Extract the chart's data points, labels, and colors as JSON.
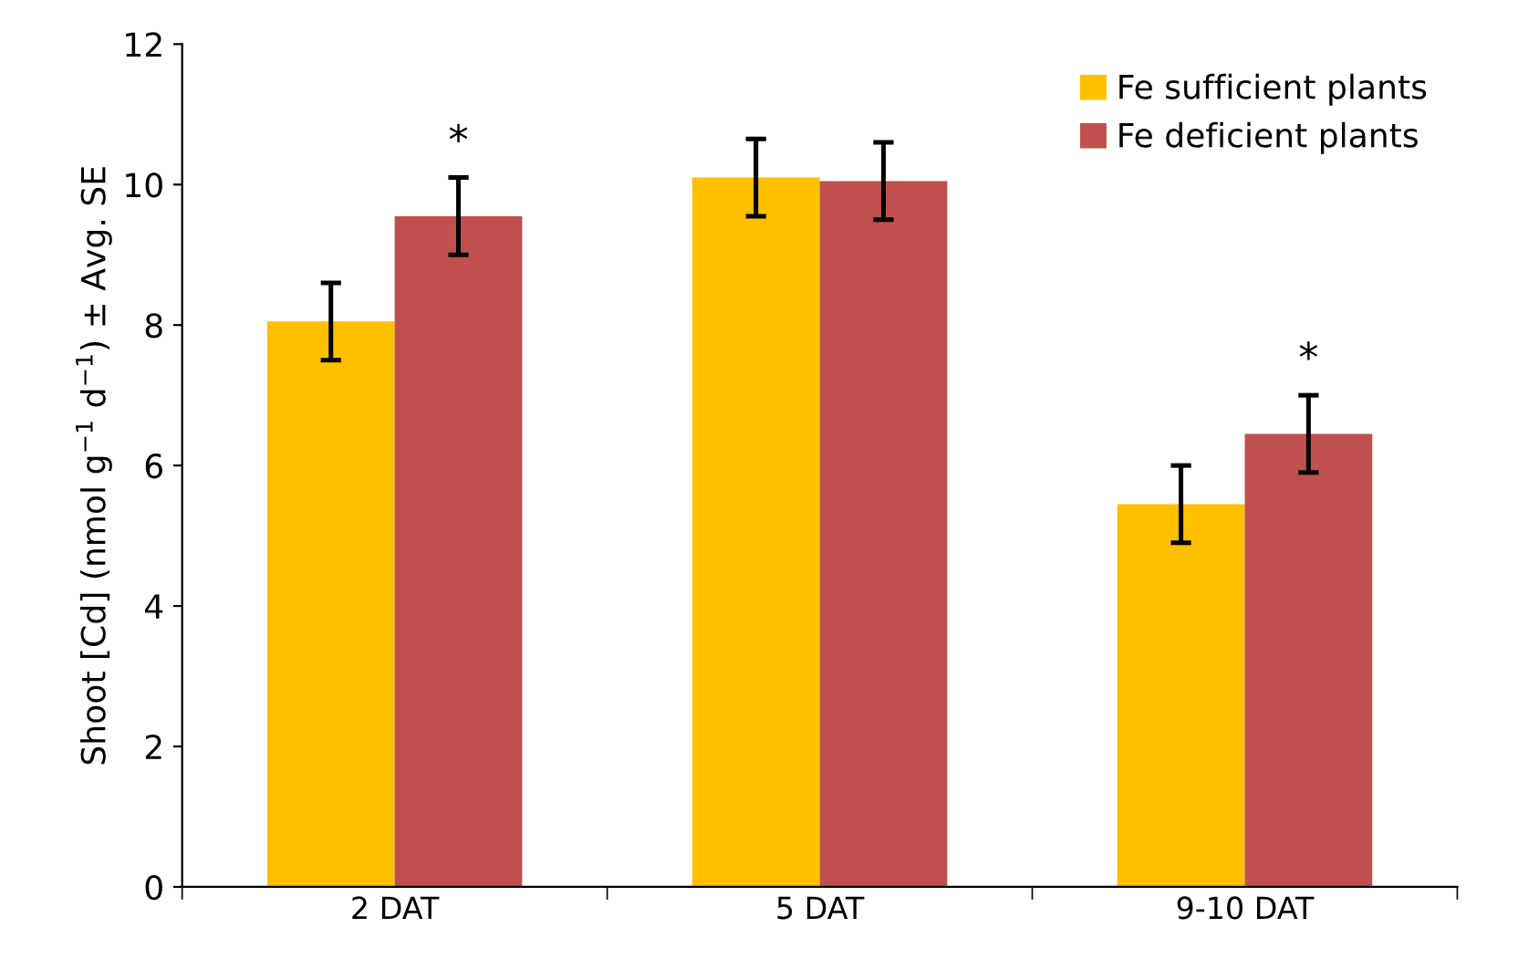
{
  "chart_data": {
    "type": "bar",
    "ylabel": "Shoot [Cd] (nmol g$^{−1}$ d$^{−1}$) ± Avg. SE",
    "categories": [
      "2 DAT",
      "5 DAT",
      "9-10 DAT"
    ],
    "series": [
      {
        "name": "Fe sufficient plants",
        "color": "#ffc000",
        "values": [
          8.05,
          10.1,
          5.45
        ],
        "errors": [
          0.55,
          0.55,
          0.55
        ]
      },
      {
        "name": "Fe deficient plants",
        "color": "#c0504d",
        "values": [
          9.55,
          10.05,
          6.45
        ],
        "errors": [
          0.55,
          0.55,
          0.55
        ],
        "value_labels": [
          "*",
          null,
          "*"
        ]
      }
    ],
    "ylim": [
      0,
      12
    ],
    "yticks": [
      0,
      2,
      4,
      6,
      8,
      10,
      12
    ],
    "grid": false,
    "legend": "top right"
  }
}
